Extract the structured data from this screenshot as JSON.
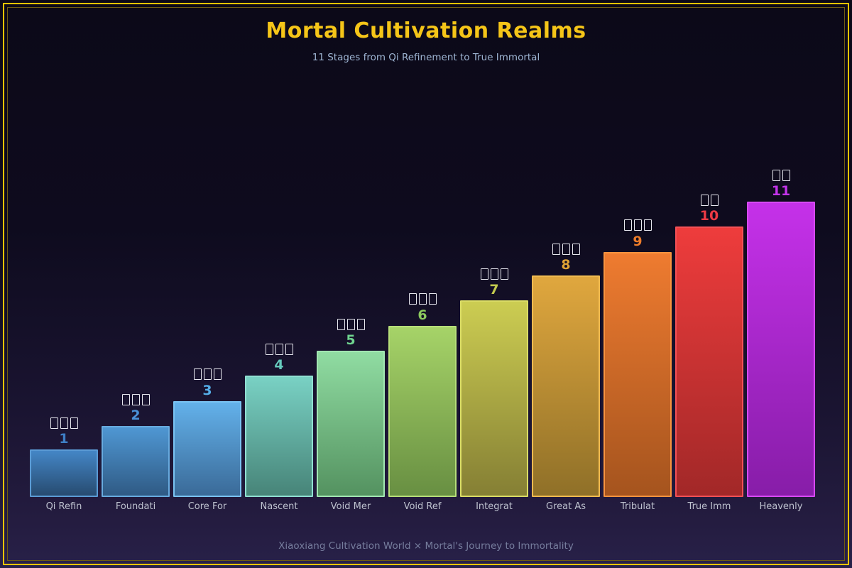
{
  "header": {
    "title": "Mortal Cultivation Realms",
    "subtitle": "11 Stages from Qi Refinement to True Immortal"
  },
  "footer": {
    "text": "Xiaoxiang Cultivation World × Mortal's Journey to Immortality"
  },
  "theme": {
    "background_top": "#0c0918",
    "background_bottom": "#282149",
    "outer_border_color": "#f5c400",
    "inner_border_color": "#6e5c12",
    "title_color": "#f5c518",
    "subtitle_color": "#9eb5d3",
    "xlabel_color": "#bdc1ce",
    "footer_color": "#767d9d",
    "missing_glyph_color": "#e8e8f0"
  },
  "chart_data": {
    "type": "bar",
    "title": "Mortal Cultivation Realms",
    "subtitle": "11 Stages from Qi Refinement to True Immortal",
    "ylabel": "",
    "xlabel": "",
    "ylim": [
      0,
      100
    ],
    "grid": false,
    "legend": "none",
    "note": "CJK realm names above each bar render as missing-glyph tofu boxes; stage number shown below them in the bar color",
    "categories": [
      "Qi Refin",
      "Foundati",
      "Core For",
      "Nascent",
      "Void Mer",
      "Void Ref",
      "Integrat",
      "Great As",
      "Tribulat",
      "True Imm",
      "Heavenly"
    ],
    "stages": [
      1,
      2,
      3,
      4,
      5,
      6,
      7,
      8,
      9,
      10,
      11
    ],
    "values": [
      16,
      24,
      32.5,
      41,
      49.5,
      58,
      66.5,
      75,
      83,
      91.5,
      100
    ],
    "bars": [
      {
        "stage": "1",
        "cjk": "□□□",
        "label": "Qi Refin",
        "value": 16,
        "color_top": "#4486c6",
        "color_bottom": "#274b70",
        "color_border": "#5b9bd5",
        "color_number": "#3e7fc6"
      },
      {
        "stage": "2",
        "cjk": "□□□",
        "label": "Foundati",
        "value": 24,
        "color_top": "#4f97d3",
        "color_bottom": "#2f5a84",
        "color_border": "#68abdf",
        "color_number": "#4a91d9"
      },
      {
        "stage": "3",
        "cjk": "□□□",
        "label": "Core For",
        "value": 32.5,
        "color_top": "#63b1ea",
        "color_bottom": "#3a6a98",
        "color_border": "#7ac3f2",
        "color_number": "#55aee8"
      },
      {
        "stage": "4",
        "cjk": "□□□",
        "label": "Nascent",
        "value": 41,
        "color_top": "#79d1c4",
        "color_bottom": "#478478",
        "color_border": "#90dfd2",
        "color_number": "#66cabd"
      },
      {
        "stage": "5",
        "cjk": "□□□",
        "label": "Void Mer",
        "value": 49.5,
        "color_top": "#90dca2",
        "color_bottom": "#549260",
        "color_border": "#a2e6b2",
        "color_number": "#6fd48f"
      },
      {
        "stage": "6",
        "cjk": "□□□",
        "label": "Void Ref",
        "value": 58,
        "color_top": "#a6d368",
        "color_bottom": "#688f42",
        "color_border": "#b6de79",
        "color_number": "#8cc95e"
      },
      {
        "stage": "7",
        "cjk": "□□□",
        "label": "Integrat",
        "value": 66.5,
        "color_top": "#cccd52",
        "color_bottom": "#857f34",
        "color_border": "#dadc66",
        "color_number": "#c2c94e"
      },
      {
        "stage": "8",
        "cjk": "□□□",
        "label": "Great As",
        "value": 75,
        "color_top": "#e0a73e",
        "color_bottom": "#8f7028",
        "color_border": "#f0ba50",
        "color_number": "#dfa234"
      },
      {
        "stage": "9",
        "cjk": "□□□",
        "label": "Tribulat",
        "value": 83,
        "color_top": "#ee7b30",
        "color_bottom": "#a5541e",
        "color_border": "#f8933f",
        "color_number": "#ee7d2a"
      },
      {
        "stage": "10",
        "cjk": "□□",
        "label": "True Imm",
        "value": 91.5,
        "color_top": "#ee3c3c",
        "color_bottom": "#a22828",
        "color_border": "#f25056",
        "color_number": "#ee3a44"
      },
      {
        "stage": "11",
        "cjk": "□□",
        "label": "Heavenly",
        "value": 100,
        "color_top": "#c531e9",
        "color_bottom": "#871da8",
        "color_border": "#d74af5",
        "color_number": "#c334ea"
      }
    ]
  }
}
